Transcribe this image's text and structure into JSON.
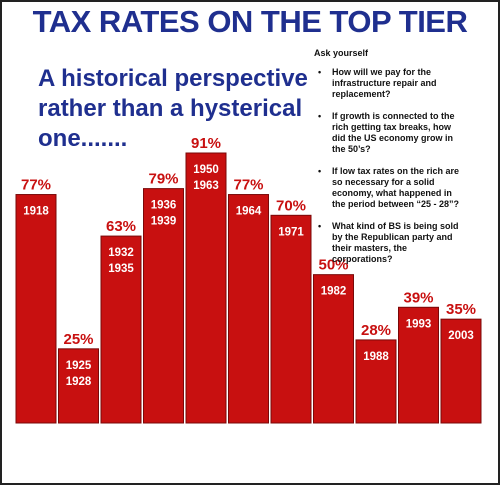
{
  "title": "TAX RATES ON THE TOP TIER",
  "subtitle_lines": [
    "A historical perspective",
    "rather than a hysterical",
    "one......."
  ],
  "ask": {
    "heading": "Ask yourself",
    "questions": [
      [
        "How will we pay for the",
        "infrastructure repair and",
        "replacement?"
      ],
      [
        "If growth is connected to the",
        "rich getting tax breaks, how",
        "did the US economy grow in",
        "the 50’s?"
      ],
      [
        "If low tax rates on the rich are",
        "so necessary for a solid",
        "economy, what happened in",
        "the period between “25 - 28”?"
      ],
      [
        "What kind of BS is being sold",
        "by the Republican party and",
        "their masters, the",
        "corporations?"
      ]
    ]
  },
  "colors": {
    "bar": "#c81010",
    "bar_stroke": "#7a0808",
    "title": "#1f2f8f",
    "value_label": "#c81010"
  },
  "chart_data": {
    "type": "bar",
    "categories": [
      [
        "1918"
      ],
      [
        "1925",
        "1928"
      ],
      [
        "1932",
        "1935"
      ],
      [
        "1936",
        "1939"
      ],
      [
        "1950",
        "1963"
      ],
      [
        "1964"
      ],
      [
        "1971"
      ],
      [
        "1982"
      ],
      [
        "1988"
      ],
      [
        "1993"
      ],
      [
        "2003"
      ]
    ],
    "values": [
      77,
      25,
      63,
      79,
      91,
      77,
      70,
      50,
      28,
      39,
      35
    ],
    "value_labels": [
      "77%",
      "25%",
      "63%",
      "79%",
      "91%",
      "77%",
      "70%",
      "50%",
      "28%",
      "39%",
      "35%"
    ],
    "ylim": [
      0,
      100
    ],
    "grid": false,
    "legend": "none"
  }
}
